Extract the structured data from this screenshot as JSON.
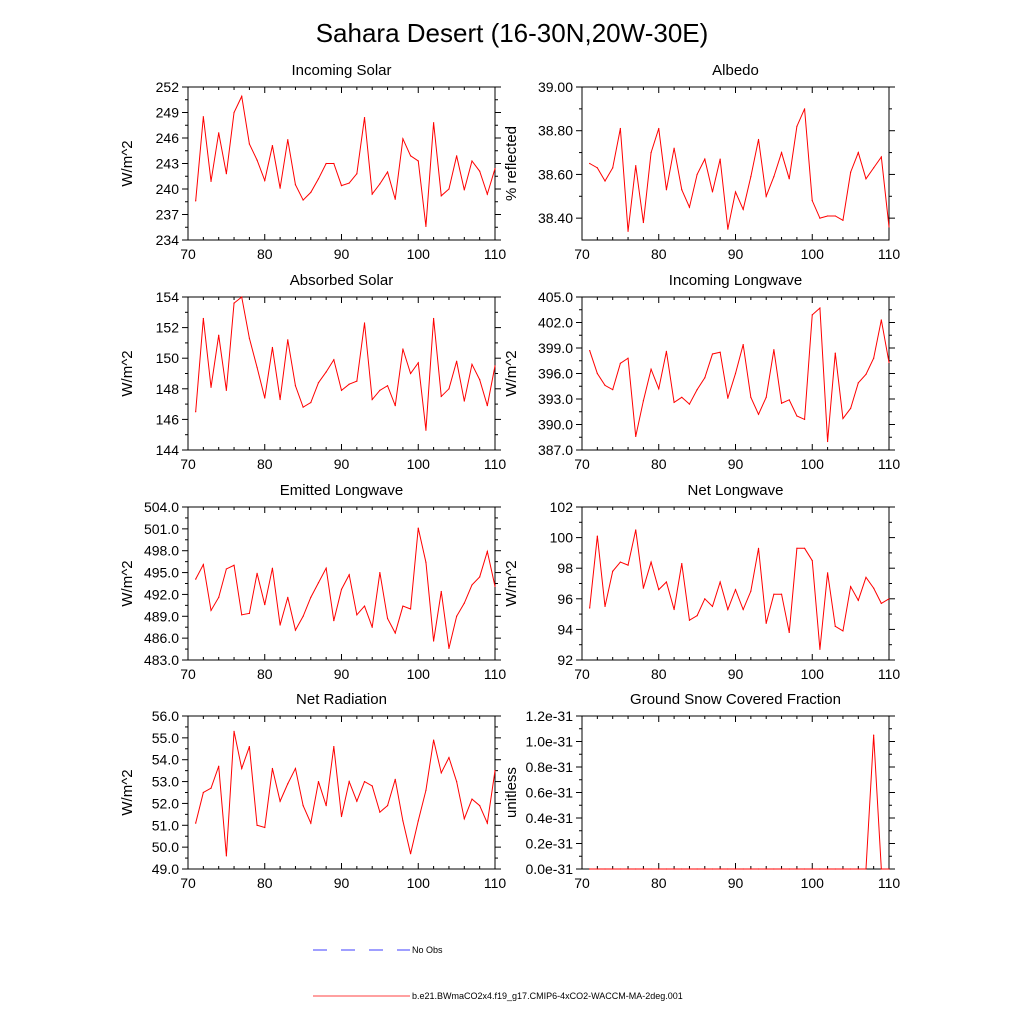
{
  "title": "Sahara Desert (16-30N,20W-30E)",
  "colors": {
    "model": "#ff0000",
    "obs": "#0000ff",
    "axis": "#000000"
  },
  "legend": {
    "items": [
      {
        "label": "No Obs",
        "style": "dashed",
        "color": "#0000ff"
      },
      {
        "label": "b.e21.BWmaCO2x4.f19_g17.CMIP6-4xCO2-WACCM-MA-2deg.001",
        "style": "solid",
        "color": "#ff0000"
      }
    ]
  },
  "chart_data": [
    {
      "type": "line",
      "title": "Incoming Solar",
      "ylabel": "W/m^2",
      "xlim": [
        70,
        110
      ],
      "ylim": [
        234,
        252
      ],
      "xticks": [
        70,
        80,
        90,
        100,
        110
      ],
      "xtick_labels": [
        "70",
        "80",
        "90",
        "100",
        "110"
      ],
      "yticks": [
        234,
        237,
        240,
        243,
        246,
        249,
        252
      ],
      "ytick_labels": [
        "234",
        "237",
        "240",
        "243",
        "246",
        "249",
        "252"
      ],
      "x": [
        71,
        72,
        73,
        74,
        75,
        76,
        77,
        78,
        79,
        80,
        81,
        82,
        83,
        84,
        85,
        86,
        87,
        88,
        89,
        90,
        91,
        92,
        93,
        94,
        95,
        96,
        97,
        98,
        99,
        100,
        101,
        102,
        103,
        104,
        105,
        106,
        107,
        108,
        109,
        110
      ],
      "series": [
        {
          "name": "b.e21.BWmaCO2x4.f19_g17.CMIP6-4xCO2-WACCM-MA-2deg.001",
          "values": [
            238.6,
            248.5,
            240.9,
            246.6,
            241.8,
            249,
            250.9,
            245.3,
            243.4,
            241,
            245.1,
            240.1,
            245.8,
            240.5,
            238.7,
            239.6,
            241.2,
            243,
            243,
            240.4,
            240.7,
            241.8,
            248.4,
            239.4,
            240.6,
            242,
            238.8,
            245.9,
            243.9,
            243.3,
            235.6,
            247.8,
            239.2,
            240,
            243.9,
            239.9,
            243.3,
            242.1,
            239.4,
            242.4
          ]
        }
      ]
    },
    {
      "type": "line",
      "title": "Albedo",
      "ylabel": "% reflected",
      "xlim": [
        70,
        110
      ],
      "ylim": [
        38.3,
        39.0
      ],
      "xticks": [
        70,
        80,
        90,
        100,
        110
      ],
      "xtick_labels": [
        "70",
        "80",
        "90",
        "100",
        "110"
      ],
      "yticks": [
        38.4,
        38.6,
        38.8,
        39.0
      ],
      "ytick_labels": [
        "38.40",
        "38.60",
        "38.80",
        "39.00"
      ],
      "x": [
        71,
        72,
        73,
        74,
        75,
        76,
        77,
        78,
        79,
        80,
        81,
        82,
        83,
        84,
        85,
        86,
        87,
        88,
        89,
        90,
        91,
        92,
        93,
        94,
        95,
        96,
        97,
        98,
        99,
        100,
        101,
        102,
        103,
        104,
        105,
        106,
        107,
        108,
        109,
        110
      ],
      "series": [
        {
          "name": "b.e21.BWmaCO2x4.f19_g17.CMIP6-4xCO2-WACCM-MA-2deg.001",
          "values": [
            38.65,
            38.63,
            38.57,
            38.63,
            38.81,
            38.34,
            38.64,
            38.38,
            38.7,
            38.81,
            38.53,
            38.72,
            38.53,
            38.45,
            38.6,
            38.67,
            38.52,
            38.67,
            38.35,
            38.52,
            38.44,
            38.59,
            38.76,
            38.5,
            38.59,
            38.7,
            38.58,
            38.82,
            38.9,
            38.48,
            38.4,
            38.41,
            38.41,
            38.39,
            38.61,
            38.7,
            38.58,
            38.63,
            38.68,
            38.36
          ]
        }
      ]
    },
    {
      "type": "line",
      "title": "Absorbed Solar",
      "ylabel": "W/m^2",
      "xlim": [
        70,
        110
      ],
      "ylim": [
        144,
        154
      ],
      "xticks": [
        70,
        80,
        90,
        100,
        110
      ],
      "xtick_labels": [
        "70",
        "80",
        "90",
        "100",
        "110"
      ],
      "yticks": [
        144,
        146,
        148,
        150,
        152,
        154
      ],
      "ytick_labels": [
        "144",
        "146",
        "148",
        "150",
        "152",
        "154"
      ],
      "x": [
        71,
        72,
        73,
        74,
        75,
        76,
        77,
        78,
        79,
        80,
        81,
        82,
        83,
        84,
        85,
        86,
        87,
        88,
        89,
        90,
        91,
        92,
        93,
        94,
        95,
        96,
        97,
        98,
        99,
        100,
        101,
        102,
        103,
        104,
        105,
        106,
        107,
        108,
        109,
        110
      ],
      "series": [
        {
          "name": "b.e21.BWmaCO2x4.f19_g17.CMIP6-4xCO2-WACCM-MA-2deg.001",
          "values": [
            146.5,
            152.6,
            148.1,
            151.5,
            147.9,
            153.6,
            154,
            151.3,
            149.4,
            147.4,
            150.7,
            147.3,
            151.2,
            148.2,
            146.8,
            147.1,
            148.4,
            149.1,
            149.9,
            147.9,
            148.3,
            148.5,
            152.3,
            147.3,
            147.9,
            148.2,
            146.9,
            150.6,
            149,
            149.7,
            145.3,
            152.6,
            147.5,
            148,
            149.8,
            147.2,
            149.6,
            148.6,
            146.9,
            149.5
          ]
        }
      ]
    },
    {
      "type": "line",
      "title": "Incoming Longwave",
      "ylabel": "W/m^2",
      "xlim": [
        70,
        110
      ],
      "ylim": [
        387,
        405
      ],
      "xticks": [
        70,
        80,
        90,
        100,
        110
      ],
      "xtick_labels": [
        "70",
        "80",
        "90",
        "100",
        "110"
      ],
      "yticks": [
        387,
        390,
        393,
        396,
        399,
        402,
        405
      ],
      "ytick_labels": [
        "387.0",
        "390.0",
        "393.0",
        "396.0",
        "399.0",
        "402.0",
        "405.0"
      ],
      "x": [
        71,
        72,
        73,
        74,
        75,
        76,
        77,
        78,
        79,
        80,
        81,
        82,
        83,
        84,
        85,
        86,
        87,
        88,
        89,
        90,
        91,
        92,
        93,
        94,
        95,
        96,
        97,
        98,
        99,
        100,
        101,
        102,
        103,
        104,
        105,
        106,
        107,
        108,
        109,
        110
      ],
      "series": [
        {
          "name": "b.e21.BWmaCO2x4.f19_g17.CMIP6-4xCO2-WACCM-MA-2deg.001",
          "values": [
            398.7,
            396,
            394.6,
            394.1,
            397.2,
            397.8,
            388.6,
            392.8,
            396.5,
            394.2,
            398.6,
            392.6,
            393.2,
            392.4,
            394.1,
            395.5,
            398.3,
            398.5,
            393.1,
            396,
            399.4,
            393.2,
            391.2,
            393.2,
            398.8,
            392.5,
            392.9,
            391,
            390.6,
            402.9,
            403.7,
            388,
            398.4,
            390.7,
            391.9,
            394.9,
            395.9,
            397.8,
            402.3,
            397.3
          ]
        }
      ]
    },
    {
      "type": "line",
      "title": "Emitted Longwave",
      "ylabel": "W/m^2",
      "xlim": [
        70,
        110
      ],
      "ylim": [
        483,
        504
      ],
      "xticks": [
        70,
        80,
        90,
        100,
        110
      ],
      "xtick_labels": [
        "70",
        "80",
        "90",
        "100",
        "110"
      ],
      "yticks": [
        483,
        486,
        489,
        492,
        495,
        498,
        501,
        504
      ],
      "ytick_labels": [
        "483.0",
        "486.0",
        "489.0",
        "492.0",
        "495.0",
        "498.0",
        "501.0",
        "504.0"
      ],
      "x": [
        71,
        72,
        73,
        74,
        75,
        76,
        77,
        78,
        79,
        80,
        81,
        82,
        83,
        84,
        85,
        86,
        87,
        88,
        89,
        90,
        91,
        92,
        93,
        94,
        95,
        96,
        97,
        98,
        99,
        100,
        101,
        102,
        103,
        104,
        105,
        106,
        107,
        108,
        109,
        110
      ],
      "series": [
        {
          "name": "b.e21.BWmaCO2x4.f19_g17.CMIP6-4xCO2-WACCM-MA-2deg.001",
          "values": [
            494.1,
            496.1,
            489.8,
            491.6,
            495.5,
            496,
            489.2,
            489.4,
            494.9,
            490.6,
            495.6,
            487.8,
            491.6,
            487.1,
            489,
            491.6,
            493.6,
            495.6,
            488.4,
            492.7,
            494.7,
            489.2,
            490.4,
            487.5,
            495,
            488.7,
            486.7,
            490.4,
            490,
            501.1,
            496.4,
            485.6,
            492.4,
            484.6,
            489,
            490.8,
            493.3,
            494.4,
            497.9,
            493.1
          ]
        }
      ]
    },
    {
      "type": "line",
      "title": "Net Longwave",
      "ylabel": "W/m^2",
      "xlim": [
        70,
        110
      ],
      "ylim": [
        92,
        102
      ],
      "xticks": [
        70,
        80,
        90,
        100,
        110
      ],
      "xtick_labels": [
        "70",
        "80",
        "90",
        "100",
        "110"
      ],
      "yticks": [
        92,
        94,
        96,
        98,
        100,
        102
      ],
      "ytick_labels": [
        "92",
        "94",
        "96",
        "98",
        "100",
        "102"
      ],
      "x": [
        71,
        72,
        73,
        74,
        75,
        76,
        77,
        78,
        79,
        80,
        81,
        82,
        83,
        84,
        85,
        86,
        87,
        88,
        89,
        90,
        91,
        92,
        93,
        94,
        95,
        96,
        97,
        98,
        99,
        100,
        101,
        102,
        103,
        104,
        105,
        106,
        107,
        108,
        109,
        110
      ],
      "series": [
        {
          "name": "b.e21.BWmaCO2x4.f19_g17.CMIP6-4xCO2-WACCM-MA-2deg.001",
          "values": [
            95.4,
            100.1,
            95.5,
            97.8,
            98.4,
            98.2,
            100.5,
            96.7,
            98.4,
            96.6,
            97.1,
            95.3,
            98.3,
            94.6,
            94.9,
            96,
            95.5,
            97.1,
            95.3,
            96.6,
            95.3,
            96.5,
            99.3,
            94.4,
            96.3,
            96.3,
            93.8,
            99.3,
            99.3,
            98.5,
            92.7,
            97.7,
            94.2,
            93.9,
            96.8,
            95.9,
            97.4,
            96.7,
            95.7,
            96
          ]
        }
      ]
    },
    {
      "type": "line",
      "title": "Net Radiation",
      "ylabel": "W/m^2",
      "xlim": [
        70,
        110
      ],
      "ylim": [
        49,
        56
      ],
      "xticks": [
        70,
        80,
        90,
        100,
        110
      ],
      "xtick_labels": [
        "70",
        "80",
        "90",
        "100",
        "110"
      ],
      "yticks": [
        49,
        50,
        51,
        52,
        53,
        54,
        55,
        56
      ],
      "ytick_labels": [
        "49.0",
        "50.0",
        "51.0",
        "52.0",
        "53.0",
        "54.0",
        "55.0",
        "56.0"
      ],
      "x": [
        71,
        72,
        73,
        74,
        75,
        76,
        77,
        78,
        79,
        80,
        81,
        82,
        83,
        84,
        85,
        86,
        87,
        88,
        89,
        90,
        91,
        92,
        93,
        94,
        95,
        96,
        97,
        98,
        99,
        100,
        101,
        102,
        103,
        104,
        105,
        106,
        107,
        108,
        109,
        110
      ],
      "series": [
        {
          "name": "b.e21.BWmaCO2x4.f19_g17.CMIP6-4xCO2-WACCM-MA-2deg.001",
          "values": [
            51.1,
            52.5,
            52.7,
            53.7,
            49.6,
            55.3,
            53.6,
            54.6,
            51,
            50.9,
            53.6,
            52.1,
            52.9,
            53.6,
            51.9,
            51.1,
            53,
            51.9,
            54.6,
            51.4,
            53,
            52.1,
            53,
            52.8,
            51.6,
            51.9,
            53.1,
            51.2,
            49.7,
            51.2,
            52.6,
            54.9,
            53.4,
            54.1,
            53,
            51.3,
            52.2,
            51.9,
            51.1,
            53.5
          ]
        }
      ]
    },
    {
      "type": "line",
      "title": "Ground Snow Covered Fraction",
      "ylabel": "unitless",
      "xlim": [
        70,
        110
      ],
      "ylim": [
        0,
        1.2e-31
      ],
      "xticks": [
        70,
        80,
        90,
        100,
        110
      ],
      "xtick_labels": [
        "70",
        "80",
        "90",
        "100",
        "110"
      ],
      "yticks": [
        0,
        2e-32,
        4e-32,
        6e-32,
        8e-32,
        1e-31,
        1.2e-31
      ],
      "ytick_labels": [
        "0.0e-31",
        "0.2e-31",
        "0.4e-31",
        "0.6e-31",
        "0.8e-31",
        "1.0e-31",
        "1.2e-31"
      ],
      "x": [
        71,
        72,
        73,
        74,
        75,
        76,
        77,
        78,
        79,
        80,
        81,
        82,
        83,
        84,
        85,
        86,
        87,
        88,
        89,
        90,
        91,
        92,
        93,
        94,
        95,
        96,
        97,
        98,
        99,
        100,
        101,
        102,
        103,
        104,
        105,
        106,
        107,
        108,
        109,
        110
      ],
      "series": [
        {
          "name": "b.e21.BWmaCO2x4.f19_g17.CMIP6-4xCO2-WACCM-MA-2deg.001",
          "values": [
            0,
            0,
            0,
            0,
            0,
            0,
            0,
            0,
            0,
            0,
            0,
            0,
            0,
            0,
            0,
            0,
            0,
            0,
            0,
            0,
            0,
            0,
            0,
            0,
            0,
            0,
            0,
            0,
            0,
            0,
            0,
            0,
            0,
            0,
            0,
            0,
            0,
            1.05e-31,
            0,
            0
          ]
        }
      ]
    }
  ]
}
